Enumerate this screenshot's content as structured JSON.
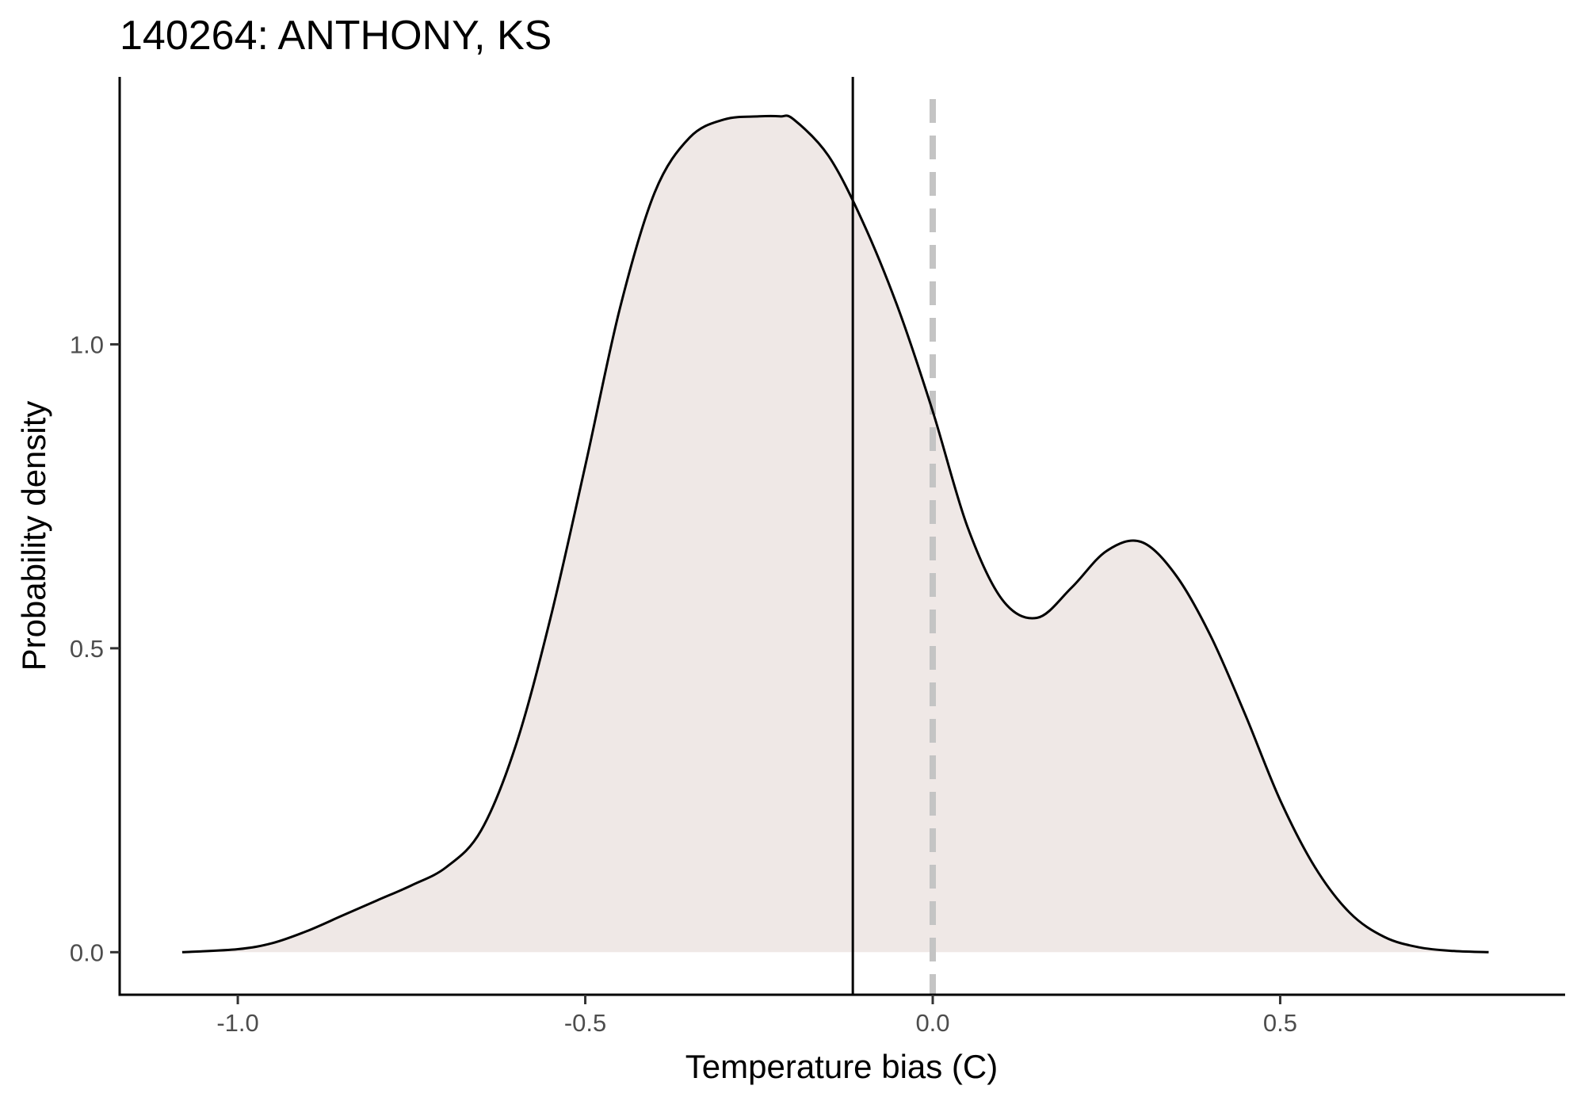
{
  "chart_data": {
    "type": "area",
    "title": "140264: ANTHONY, KS",
    "xlabel": "Temperature bias (C)",
    "ylabel": "Probability density",
    "xlim": [
      -1.17,
      0.91
    ],
    "ylim": [
      -0.07,
      1.44
    ],
    "x_ticks": [
      -1.0,
      -0.5,
      0.0,
      0.5
    ],
    "x_tick_labels": [
      "-1.0",
      "-0.5",
      "0.0",
      "0.5"
    ],
    "y_ticks": [
      0.0,
      0.5,
      1.0
    ],
    "y_tick_labels": [
      "0.0",
      "0.5",
      "1.0"
    ],
    "grid": false,
    "series": [
      {
        "x": [
          -1.08,
          -1.0,
          -0.95,
          -0.9,
          -0.85,
          -0.8,
          -0.75,
          -0.7,
          -0.65,
          -0.6,
          -0.55,
          -0.5,
          -0.45,
          -0.4,
          -0.35,
          -0.3,
          -0.25,
          -0.22,
          -0.2,
          -0.15,
          -0.1,
          -0.05,
          0.0,
          0.05,
          0.1,
          0.15,
          0.2,
          0.25,
          0.3,
          0.35,
          0.4,
          0.45,
          0.5,
          0.55,
          0.6,
          0.65,
          0.7,
          0.75,
          0.8
        ],
        "values": [
          0.0,
          0.005,
          0.015,
          0.035,
          0.06,
          0.085,
          0.11,
          0.14,
          0.2,
          0.34,
          0.55,
          0.8,
          1.06,
          1.25,
          1.34,
          1.37,
          1.375,
          1.375,
          1.37,
          1.31,
          1.2,
          1.06,
          0.89,
          0.7,
          0.58,
          0.55,
          0.6,
          0.66,
          0.675,
          0.62,
          0.52,
          0.39,
          0.25,
          0.14,
          0.065,
          0.025,
          0.008,
          0.002,
          0.0
        ],
        "fill_color": "#efe8e6",
        "line_color": "#000000"
      }
    ],
    "reference_lines": [
      {
        "x": -0.115,
        "style": "solid",
        "color": "#000000"
      },
      {
        "x": 0.0,
        "style": "dashed",
        "color": "#c4c4c4"
      }
    ]
  }
}
